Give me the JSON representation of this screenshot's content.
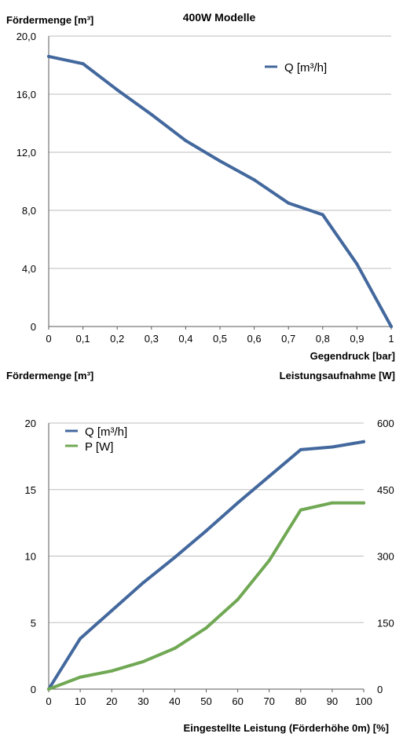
{
  "chart_data": [
    {
      "type": "line",
      "title": "400W Modelle",
      "ylabel": "Fördermenge [m³]",
      "xlabel": "Gegendruck [bar]",
      "x": [
        0,
        0.1,
        0.2,
        0.3,
        0.4,
        0.5,
        0.6,
        0.7,
        0.8,
        0.9,
        1
      ],
      "x_tick_labels": [
        "0",
        "0,1",
        "0,2",
        "0,3",
        "0,4",
        "0,5",
        "0,6",
        "0,7",
        "0,8",
        "0,9",
        "1"
      ],
      "y_ticks": [
        0,
        4,
        8,
        12,
        16,
        20
      ],
      "y_tick_labels": [
        "0",
        "4,0",
        "8,0",
        "12,0",
        "16,0",
        "20,0"
      ],
      "ylim": [
        0,
        20
      ],
      "xlim": [
        0,
        1
      ],
      "grid": "horizontal",
      "legend_position": "top-right",
      "series": [
        {
          "name": "Q [m³/h]",
          "color": "#43689d",
          "values": [
            18.6,
            18.1,
            16.3,
            14.6,
            12.8,
            11.4,
            10.1,
            8.5,
            7.7,
            4.3,
            0
          ]
        }
      ]
    },
    {
      "type": "line",
      "ylabel": "Fördermenge [m³]",
      "y2label": "Leistungsaufnahme [W]",
      "xlabel": "Eingestellte Leistung (Förderhöhe 0m) [%]",
      "x": [
        0,
        10,
        20,
        30,
        40,
        50,
        60,
        70,
        80,
        90,
        100
      ],
      "x_tick_labels": [
        "0",
        "10",
        "20",
        "30",
        "40",
        "50",
        "60",
        "70",
        "80",
        "90",
        "100"
      ],
      "y_ticks": [
        0,
        5,
        10,
        15,
        20
      ],
      "y_tick_labels": [
        "0",
        "5",
        "10",
        "15",
        "20"
      ],
      "ylim": [
        0,
        20
      ],
      "y2_ticks": [
        0,
        150,
        300,
        450,
        600
      ],
      "y2_tick_labels": [
        "0",
        "150",
        "300",
        "450",
        "600"
      ],
      "y2lim": [
        0,
        600
      ],
      "xlim": [
        0,
        100
      ],
      "grid": "horizontal",
      "legend_position": "top-left",
      "series": [
        {
          "name": "Q [m³/h]",
          "axis": "left",
          "color": "#43689d",
          "values": [
            0,
            3.8,
            5.9,
            8.0,
            9.9,
            11.9,
            14.0,
            16.0,
            18.0,
            18.2,
            18.6
          ]
        },
        {
          "name": "P [W]",
          "axis": "right",
          "color": "#70a854",
          "values": [
            0,
            27,
            41,
            62,
            92,
            138,
            202,
            290,
            404,
            420,
            420
          ]
        }
      ]
    }
  ]
}
